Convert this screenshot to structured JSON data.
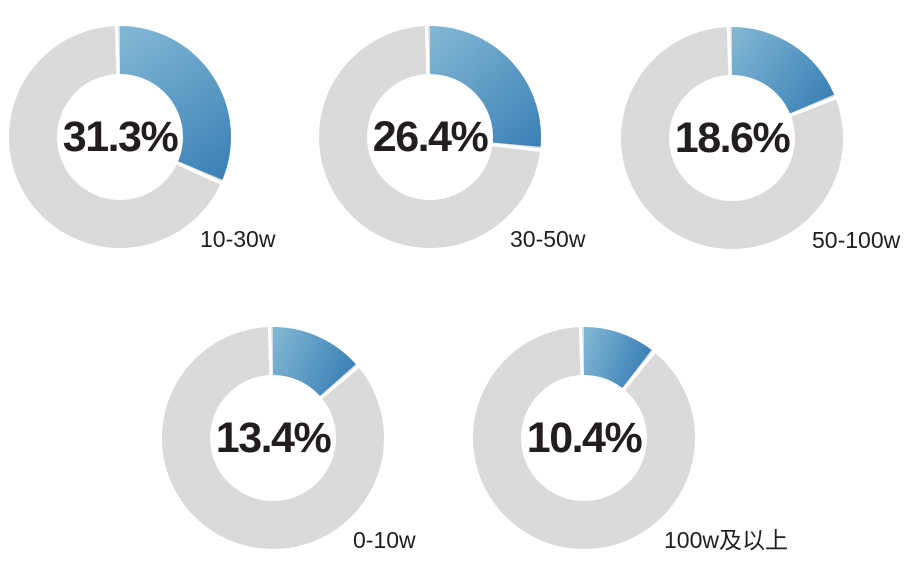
{
  "page": {
    "background": "#ffffff"
  },
  "chart_data": {
    "type": "pie",
    "subtype": "donut-small-multiples",
    "title": "",
    "unit": "%",
    "start_angle_deg": 0,
    "direction": "clockwise",
    "legend_position": "category label at bottom-right of each donut",
    "categories": [
      "10-30w",
      "30-50w",
      "50-100w",
      "0-10w",
      "100w及以上"
    ],
    "values": [
      31.3,
      26.4,
      18.6,
      13.4,
      10.4
    ],
    "donuts": [
      {
        "category": "10-30w",
        "value": 31.3,
        "value_label": "31.3%"
      },
      {
        "category": "30-50w",
        "value": 26.4,
        "value_label": "26.4%"
      },
      {
        "category": "50-100w",
        "value": 18.6,
        "value_label": "18.6%"
      },
      {
        "category": "0-10w",
        "value": 13.4,
        "value_label": "13.4%"
      },
      {
        "category": "100w及以上",
        "value": 10.4,
        "value_label": "10.4%"
      }
    ],
    "colors": {
      "arc_gradient_start": "#84b9d5",
      "arc_gradient_end": "#3a80b6",
      "track": "#dadada",
      "gap": "#ffffff",
      "text": "#221e1e"
    }
  }
}
